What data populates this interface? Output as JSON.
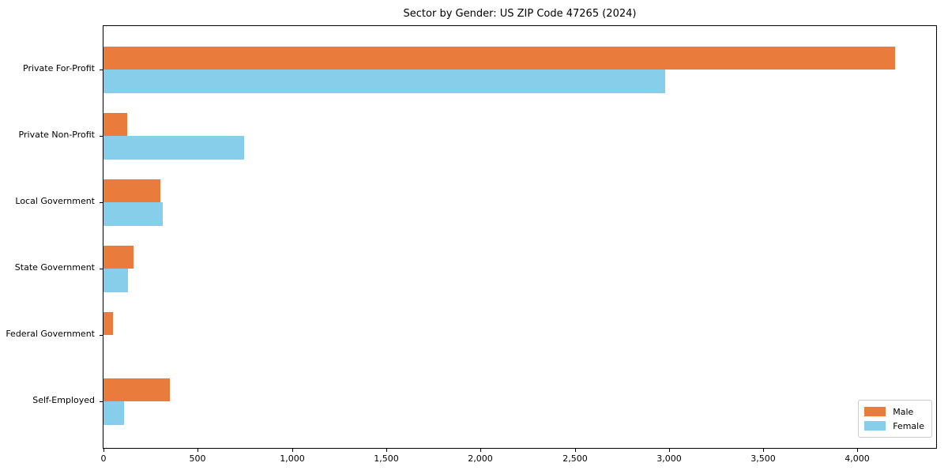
{
  "figure": {
    "background_color": "#ffffff",
    "spine_color": "#000000"
  },
  "chart_data": {
    "type": "bar",
    "orientation": "horizontal",
    "title": "Sector by Gender: US ZIP Code 47265 (2024)",
    "xlabel": "",
    "ylabel": "",
    "grid": false,
    "categories": [
      "Private For-Profit",
      "Private Non-Profit",
      "Local Government",
      "State Government",
      "Federal Government",
      "Self-Employed"
    ],
    "series": [
      {
        "name": "Male",
        "color": "#e97c3c",
        "values": [
          4200,
          125,
          300,
          160,
          50,
          350
        ]
      },
      {
        "name": "Female",
        "color": "#87ceeb",
        "values": [
          2980,
          745,
          315,
          130,
          0,
          110
        ]
      }
    ],
    "xlim": [
      0,
      4417
    ],
    "x_ticks": [
      0,
      500,
      1000,
      1500,
      2000,
      2500,
      3000,
      3500,
      4000
    ],
    "x_tick_labels": [
      "0",
      "500",
      "1,000",
      "1,500",
      "2,000",
      "2,500",
      "3,000",
      "3,500",
      "4,000"
    ],
    "legend": {
      "position": "lower right",
      "entries": [
        {
          "label": "Male",
          "color": "#e97c3c"
        },
        {
          "label": "Female",
          "color": "#87ceeb"
        }
      ]
    }
  }
}
